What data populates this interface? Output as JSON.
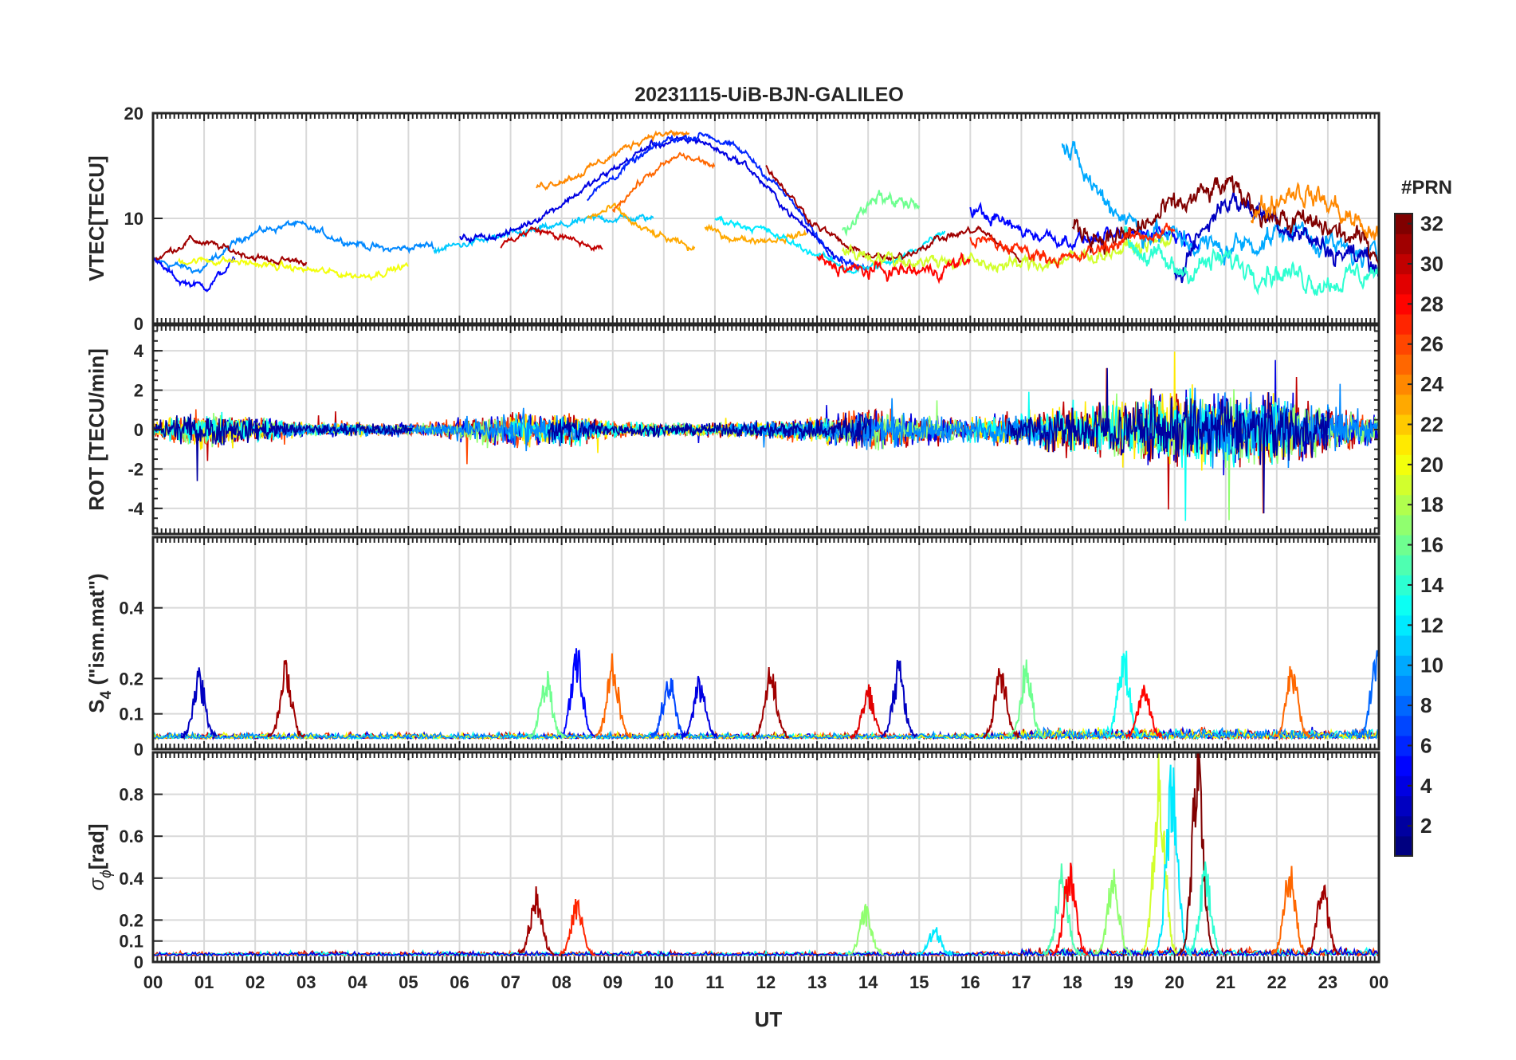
{
  "chart_data": {
    "type": "line",
    "title": "20231115-UiB-BJN-GALILEO",
    "xlabel": "UT",
    "x_ticks": [
      "00",
      "01",
      "02",
      "03",
      "04",
      "05",
      "06",
      "07",
      "08",
      "09",
      "10",
      "11",
      "12",
      "13",
      "14",
      "15",
      "16",
      "17",
      "18",
      "19",
      "20",
      "21",
      "22",
      "23",
      "00"
    ],
    "xlim": [
      0,
      24
    ],
    "colorbar": {
      "label": "#PRN",
      "ticks": [
        "2",
        "4",
        "6",
        "8",
        "10",
        "12",
        "14",
        "16",
        "18",
        "20",
        "22",
        "24",
        "26",
        "28",
        "30",
        "32"
      ],
      "range": [
        1,
        32
      ],
      "colormap": "jet"
    },
    "panels": [
      {
        "id": "vtec",
        "ylabel": "VTEC[TECU]",
        "ylim": [
          0,
          20
        ],
        "yticks": [
          "0",
          "10",
          "20"
        ],
        "ytick_values": [
          0,
          10,
          20
        ],
        "series": [
          {
            "prn": 9,
            "start": 0.0,
            "end": 5.5,
            "base": [
              6,
              5,
              8.5,
              9.5,
              8,
              7,
              7.5
            ]
          },
          {
            "prn": 31,
            "start": 0.0,
            "end": 3.0,
            "base": [
              6,
              8,
              7,
              6,
              6
            ]
          },
          {
            "prn": 5,
            "start": 0.0,
            "end": 1.6,
            "base": [
              6,
              4,
              3.5,
              6
            ]
          },
          {
            "prn": 11,
            "start": 5.5,
            "end": 9.8,
            "base": [
              7,
              8,
              9,
              10,
              10
            ]
          },
          {
            "prn": 20,
            "start": 0.5,
            "end": 5.0,
            "base": [
              6,
              6,
              5.5,
              5,
              4.5,
              5.5
            ]
          },
          {
            "prn": 4,
            "start": 6.0,
            "end": 13.5,
            "base": [
              8,
              8.5,
              11,
              14,
              17,
              17.5,
              15,
              10,
              6
            ]
          },
          {
            "prn": 6,
            "start": 8.5,
            "end": 14.0,
            "base": [
              12,
              15,
              17.5,
              18,
              16,
              12,
              7,
              5
            ]
          },
          {
            "prn": 24,
            "start": 7.5,
            "end": 10.5,
            "base": [
              13,
              14,
              16,
              18,
              18
            ]
          },
          {
            "prn": 23,
            "start": 8.5,
            "end": 10.6,
            "base": [
              10,
              11,
              9,
              8,
              7
            ]
          },
          {
            "prn": 25,
            "start": 9.0,
            "end": 11.0,
            "base": [
              11,
              14,
              16,
              15
            ]
          },
          {
            "prn": 23,
            "start": 10.8,
            "end": 12.8,
            "base": [
              9,
              8,
              8,
              8.5
            ]
          },
          {
            "prn": 30,
            "start": 6.8,
            "end": 8.8,
            "base": [
              7.5,
              9,
              8,
              7
            ]
          },
          {
            "prn": 12,
            "start": 11.0,
            "end": 15.5,
            "base": [
              10,
              9,
              7,
              5,
              6,
              9
            ]
          },
          {
            "prn": 31,
            "start": 12.0,
            "end": 17.0,
            "base": [
              15,
              10,
              7,
              6,
              8,
              9,
              6
            ]
          },
          {
            "prn": 19,
            "start": 13.5,
            "end": 20.0,
            "base": [
              7,
              6,
              6,
              5.5,
              6,
              7,
              8
            ]
          },
          {
            "prn": 16,
            "start": 13.5,
            "end": 15.0,
            "base": [
              9,
              12,
              11
            ]
          },
          {
            "prn": 28,
            "start": 13.0,
            "end": 16.0,
            "base": [
              6,
              5,
              5,
              5,
              6
            ]
          },
          {
            "prn": 5,
            "start": 16.0,
            "end": 20.5,
            "base": [
              11,
              9,
              8,
              8,
              9,
              8
            ]
          },
          {
            "prn": 10,
            "start": 17.8,
            "end": 24.0,
            "base": [
              17,
              12,
              9,
              8,
              7,
              8,
              9,
              7,
              6
            ]
          },
          {
            "prn": 3,
            "start": 20.0,
            "end": 24.0,
            "base": [
              5,
              12,
              10,
              7,
              6
            ]
          },
          {
            "prn": 14,
            "start": 19.0,
            "end": 24.0,
            "base": [
              8,
              5,
              6,
              5,
              4,
              5
            ]
          },
          {
            "prn": 32,
            "start": 18.0,
            "end": 24.0,
            "base": [
              9,
              8,
              11,
              13,
              10,
              9,
              7
            ]
          },
          {
            "prn": 24,
            "start": 21.5,
            "end": 24.0,
            "base": [
              10,
              13,
              11,
              8
            ]
          },
          {
            "prn": 27,
            "start": 16.0,
            "end": 20.0,
            "base": [
              8,
              7,
              6,
              8,
              9
            ]
          }
        ]
      },
      {
        "id": "rot",
        "ylabel": "ROT [TECU/min]",
        "ylim": [
          -5.3,
          5.3
        ],
        "yticks": [
          "-4",
          "-2",
          "0",
          "2",
          "4"
        ],
        "ytick_values": [
          -4,
          -2,
          0,
          2,
          4
        ],
        "noise_profile": {
          "hours": [
            0,
            1,
            2,
            3,
            4,
            5,
            6,
            7,
            8,
            9,
            10,
            11,
            12,
            13,
            14,
            15,
            16,
            17,
            18,
            19,
            20,
            21,
            22,
            23,
            24
          ],
          "amplitude": [
            0.4,
            0.9,
            0.6,
            0.3,
            0.3,
            0.3,
            0.5,
            0.9,
            0.8,
            0.4,
            0.3,
            0.3,
            0.4,
            0.6,
            1.0,
            0.7,
            0.6,
            0.8,
            1.2,
            1.5,
            1.8,
            1.8,
            1.6,
            1.2,
            0.6
          ]
        },
        "prns": [
          30,
          26,
          4,
          17,
          21,
          13,
          9,
          2
        ]
      },
      {
        "id": "s4",
        "ylabel": "S",
        "ylabel_sub": "4",
        "ylabel_suffix": " (\"ism.mat\")",
        "ylim": [
          0,
          0.6
        ],
        "yticks": [
          "0",
          "0.1",
          "0.2",
          "0.4"
        ],
        "ytick_values": [
          0,
          0.1,
          0.2,
          0.4
        ],
        "bursts": [
          {
            "prn": 31,
            "t": 2.6,
            "peak": 0.23
          },
          {
            "prn": 3,
            "t": 0.9,
            "peak": 0.2
          },
          {
            "prn": 5,
            "t": 8.3,
            "peak": 0.27
          },
          {
            "prn": 25,
            "t": 9.0,
            "peak": 0.24
          },
          {
            "prn": 7,
            "t": 10.1,
            "peak": 0.2
          },
          {
            "prn": 4,
            "t": 10.7,
            "peak": 0.18
          },
          {
            "prn": 31,
            "t": 12.1,
            "peak": 0.22
          },
          {
            "prn": 29,
            "t": 14.0,
            "peak": 0.15
          },
          {
            "prn": 3,
            "t": 14.6,
            "peak": 0.22
          },
          {
            "prn": 31,
            "t": 16.6,
            "peak": 0.22
          },
          {
            "prn": 16,
            "t": 17.1,
            "peak": 0.22
          },
          {
            "prn": 13,
            "t": 19.0,
            "peak": 0.27
          },
          {
            "prn": 28,
            "t": 19.4,
            "peak": 0.17
          },
          {
            "prn": 25,
            "t": 22.3,
            "peak": 0.22
          },
          {
            "prn": 8,
            "t": 23.95,
            "peak": 0.25
          },
          {
            "prn": 16,
            "t": 7.7,
            "peak": 0.19
          }
        ],
        "prns": [
          30,
          26,
          4,
          13,
          20,
          9
        ]
      },
      {
        "id": "sigma",
        "ylabel": "σ",
        "ylabel_sub": "ϕ",
        "ylabel_suffix": "[rad]",
        "ylim": [
          0,
          1.0
        ],
        "yticks": [
          "0",
          "0.1",
          "0.2",
          "0.4",
          "0.6",
          "0.8"
        ],
        "ytick_values": [
          0,
          0.1,
          0.2,
          0.4,
          0.6,
          0.8
        ],
        "bursts": [
          {
            "prn": 31,
            "t": 7.5,
            "peak": 0.33
          },
          {
            "prn": 27,
            "t": 8.3,
            "peak": 0.28
          },
          {
            "prn": 17,
            "t": 13.95,
            "peak": 0.25
          },
          {
            "prn": 12,
            "t": 15.3,
            "peak": 0.14
          },
          {
            "prn": 15,
            "t": 17.8,
            "peak": 0.45
          },
          {
            "prn": 28,
            "t": 17.95,
            "peak": 0.48
          },
          {
            "prn": 17,
            "t": 18.8,
            "peak": 0.42
          },
          {
            "prn": 19,
            "t": 19.7,
            "peak": 1.0
          },
          {
            "prn": 12,
            "t": 19.95,
            "peak": 0.95
          },
          {
            "prn": 32,
            "t": 20.45,
            "peak": 1.0
          },
          {
            "prn": 14,
            "t": 20.6,
            "peak": 0.45
          },
          {
            "prn": 25,
            "t": 22.25,
            "peak": 0.47
          },
          {
            "prn": 31,
            "t": 22.9,
            "peak": 0.36
          }
        ],
        "prns": [
          30,
          26,
          13,
          4
        ]
      }
    ]
  }
}
